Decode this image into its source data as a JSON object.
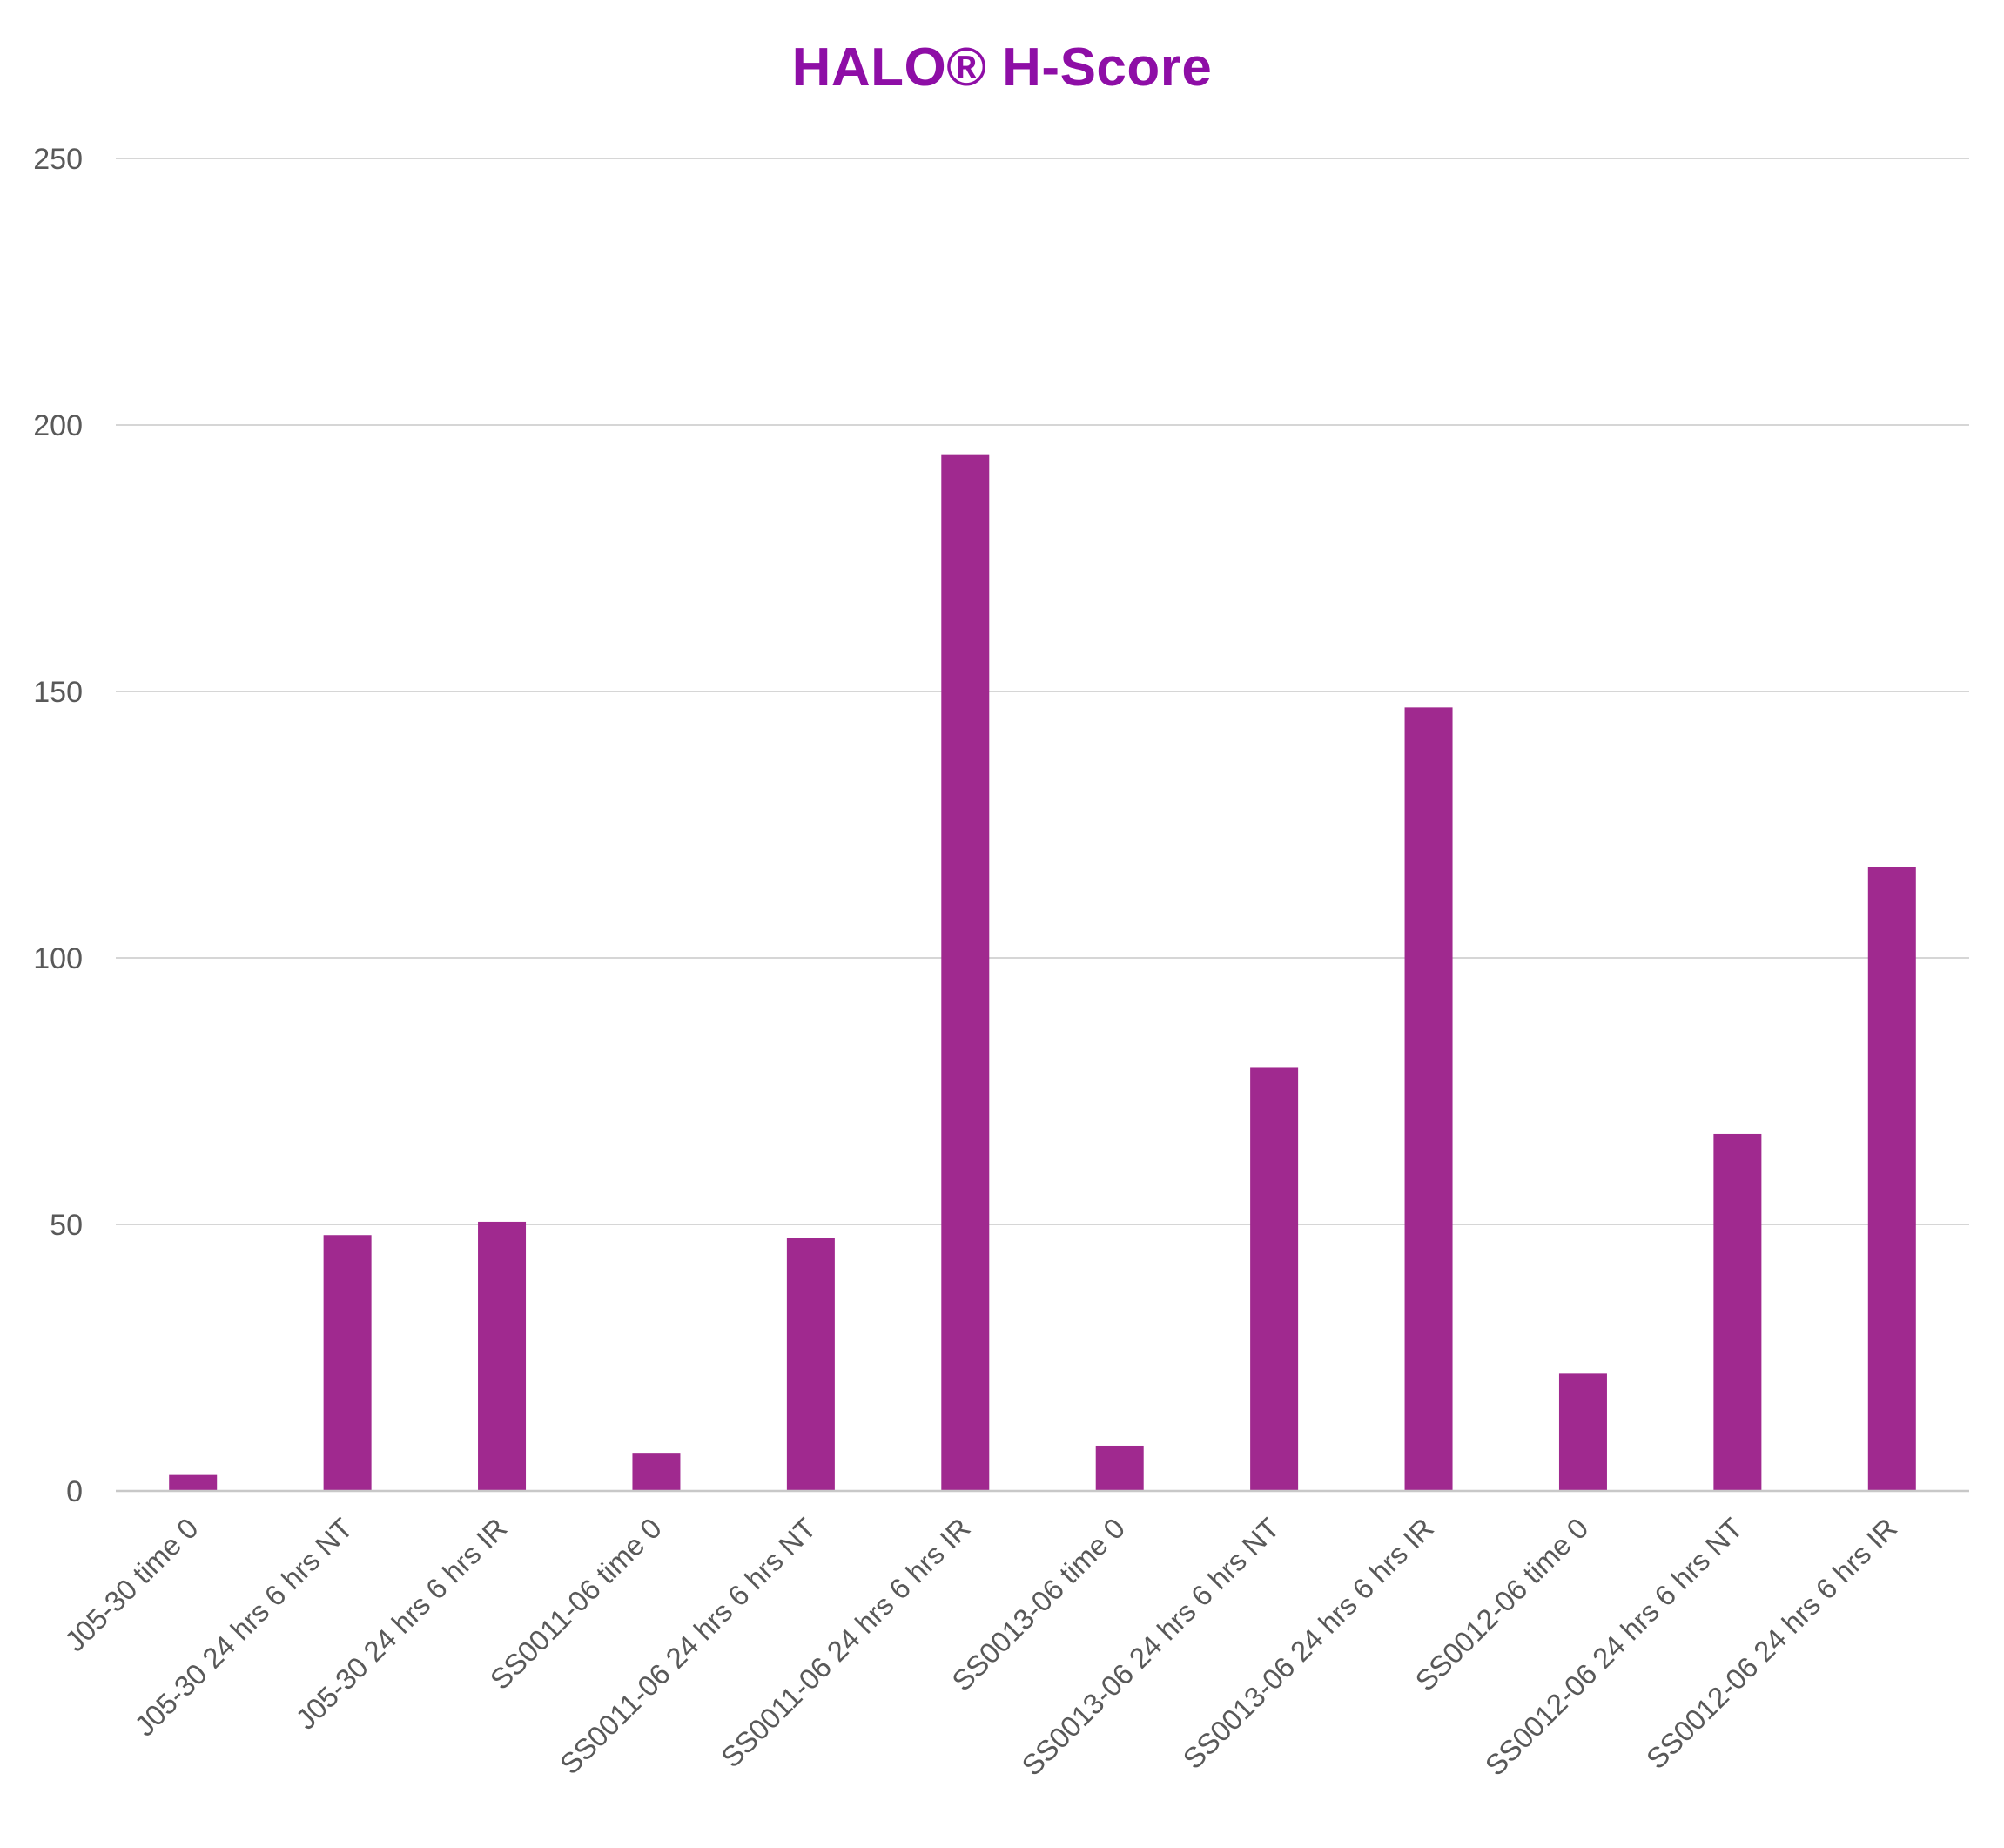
{
  "chart_data": {
    "type": "bar",
    "title": "HALO®  H-Score",
    "xlabel": "",
    "ylabel": "",
    "ylim": [
      0,
      250
    ],
    "yticks": [
      "0",
      "50",
      "100",
      "150",
      "200",
      "250"
    ],
    "ytick_values": [
      0,
      50,
      100,
      150,
      200,
      250
    ],
    "grid": true,
    "legend": "none",
    "categories": [
      "J05-30 time 0",
      "J05-30 24 hrs 6 hrs NT",
      "J05-30 24 hrs 6 hrs IR",
      "SS0011-06 time 0",
      "SS0011-06 24 hrs 6 hrs NT",
      "SS0011-06 24 hrs 6 hrs IR",
      "SS0013-06 time 0",
      "SS0013-06 24 hrs 6 hrs NT",
      "SS0013-06 24 hrs 6 hrs IR",
      "SS0012-06 time 0",
      "SS0012-06 24 hrs 6 hrs NT",
      "SS0012-06 24 hrs 6 hrs IR"
    ],
    "values": [
      3,
      48,
      50.5,
      7,
      47.5,
      194.5,
      8.5,
      79.5,
      147,
      22,
      67,
      117
    ]
  },
  "colors": {
    "title": "#8e0ea6",
    "bar": "#a0298f",
    "grid": "#d6d6d6",
    "axis": "#c8c8c8",
    "tick_text": "#595959"
  }
}
